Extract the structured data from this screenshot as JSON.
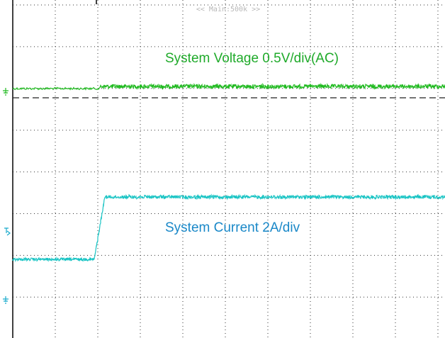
{
  "header": {
    "timebase": "<< Main:500k >>"
  },
  "traces": [
    {
      "label": "System Voltage 0.5V/div(AC)"
    },
    {
      "label": "System Current 2A/div"
    }
  ]
}
